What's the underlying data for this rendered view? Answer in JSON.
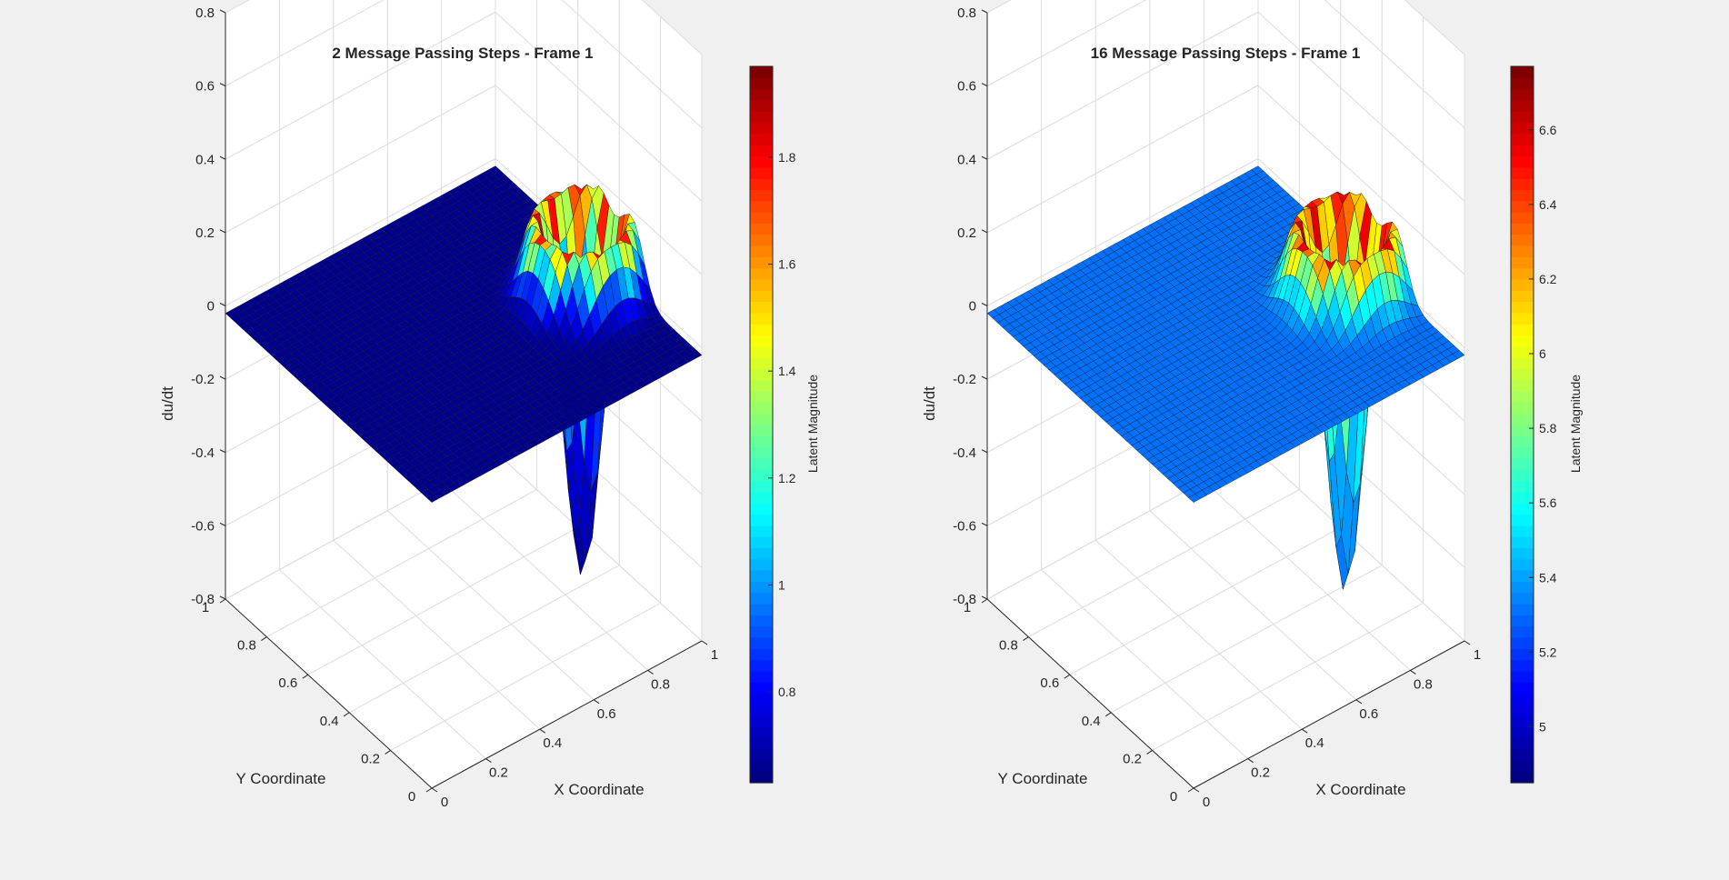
{
  "figure": {
    "background": "#f0f0f0"
  },
  "chart_data": [
    {
      "type": "surface",
      "title": "2 Message Passing Steps - Frame 1",
      "xlabel": "X Coordinate",
      "ylabel": "Y Coordinate",
      "zlabel": "du/dt",
      "xlim": [
        0,
        1
      ],
      "ylim": [
        0,
        1
      ],
      "zlim": [
        -0.8,
        0.8
      ],
      "xticks": [
        "0",
        "0.2",
        "0.4",
        "0.6",
        "0.8",
        "1"
      ],
      "yticks": [
        "0",
        "0.2",
        "0.4",
        "0.6",
        "0.8",
        "1"
      ],
      "zticks": [
        "-0.8",
        "-0.6",
        "-0.4",
        "-0.2",
        "0",
        "0.2",
        "0.4",
        "0.6",
        "0.8"
      ],
      "grid": true,
      "colormap": "jet",
      "colorbar": {
        "label": "Latent Magnitude",
        "range": [
          0.63,
          1.97
        ],
        "ticks": [
          "0.8",
          "1",
          "1.2",
          "1.4",
          "1.6",
          "1.8"
        ]
      },
      "surface_model": {
        "flat_level": -0.02,
        "well_center": [
          0.88,
          0.42
        ],
        "well_depth": -0.78,
        "ring_height": 0.24,
        "base_color_value": 0.65,
        "ring_color_value": 1.85
      }
    },
    {
      "type": "surface",
      "title": "16 Message Passing Steps - Frame 1",
      "xlabel": "X Coordinate",
      "ylabel": "Y Coordinate",
      "zlabel": "du/dt",
      "xlim": [
        0,
        1
      ],
      "ylim": [
        0,
        1
      ],
      "zlim": [
        -0.8,
        0.8
      ],
      "xticks": [
        "0",
        "0.2",
        "0.4",
        "0.6",
        "0.8",
        "1"
      ],
      "yticks": [
        "0",
        "0.2",
        "0.4",
        "0.6",
        "0.8",
        "1"
      ],
      "zticks": [
        "-0.8",
        "-0.6",
        "-0.4",
        "-0.2",
        "0",
        "0.2",
        "0.4",
        "0.6",
        "0.8"
      ],
      "grid": true,
      "colormap": "jet",
      "colorbar": {
        "label": "Latent Magnitude",
        "range": [
          4.85,
          6.77
        ],
        "ticks": [
          "5",
          "5.2",
          "5.4",
          "5.6",
          "5.8",
          "6",
          "6.2",
          "6.4",
          "6.6"
        ]
      },
      "surface_model": {
        "flat_level": -0.02,
        "well_center": [
          0.88,
          0.42
        ],
        "well_depth": -0.82,
        "ring_height": 0.22,
        "base_color_value": 5.3,
        "ring_color_value": 6.65
      }
    }
  ]
}
